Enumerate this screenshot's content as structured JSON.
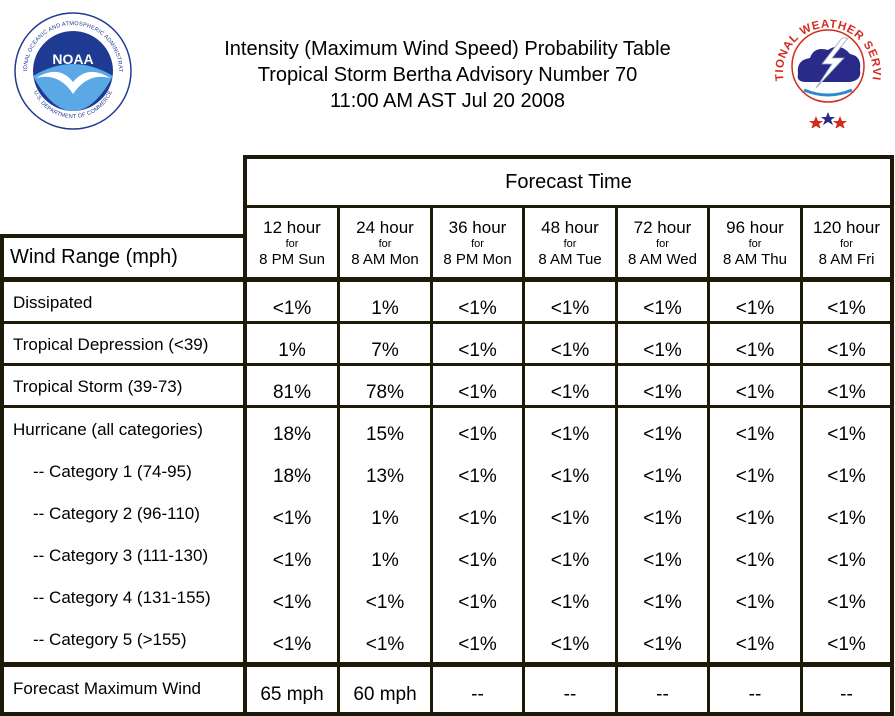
{
  "header": {
    "title_lines": [
      "Intensity (Maximum Wind Speed) Probability Table",
      "Tropical Storm Bertha Advisory Number 70",
      "11:00 AM AST Jul 20 2008"
    ],
    "left_logo": {
      "name": "NOAA",
      "ring_text": "NATIONAL OCEANIC AND ATMOSPHERIC ADMINISTRATION",
      "bottom_text": "U.S. DEPARTMENT OF COMMERCE",
      "icon": "noaa-logo",
      "color": "#1f3a93"
    },
    "right_logo": {
      "ring_text": "NATIONAL WEATHER SERVICE",
      "icon": "nws-logo",
      "color": "#d52b1e"
    }
  },
  "table": {
    "forecast_time_label": "Forecast Time",
    "row_header_label": "Wind Range (mph)",
    "columns": [
      {
        "hour": "12 hour",
        "for": "for",
        "time": "8 PM Sun"
      },
      {
        "hour": "24 hour",
        "for": "for",
        "time": "8 AM Mon"
      },
      {
        "hour": "36 hour",
        "for": "for",
        "time": "8 PM Mon"
      },
      {
        "hour": "48 hour",
        "for": "for",
        "time": "8 AM Tue"
      },
      {
        "hour": "72 hour",
        "for": "for",
        "time": "8 AM Wed"
      },
      {
        "hour": "96 hour",
        "for": "for",
        "time": "8 AM Thu"
      },
      {
        "hour": "120 hour",
        "for": "for",
        "time": "8 AM Fri"
      }
    ],
    "rows": [
      {
        "label": "Dissipated",
        "values": [
          "<1%",
          "1%",
          "<1%",
          "<1%",
          "<1%",
          "<1%",
          "<1%"
        ]
      },
      {
        "label": "Tropical Depression (<39)",
        "values": [
          "1%",
          "7%",
          "<1%",
          "<1%",
          "<1%",
          "<1%",
          "<1%"
        ]
      },
      {
        "label": "Tropical Storm (39-73)",
        "values": [
          "81%",
          "78%",
          "<1%",
          "<1%",
          "<1%",
          "<1%",
          "<1%"
        ]
      },
      {
        "label": "Hurricane (all categories)",
        "values": [
          "18%",
          "15%",
          "<1%",
          "<1%",
          "<1%",
          "<1%",
          "<1%"
        ]
      },
      {
        "label": "-- Category 1 (74-95)",
        "values": [
          "18%",
          "13%",
          "<1%",
          "<1%",
          "<1%",
          "<1%",
          "<1%"
        ]
      },
      {
        "label": "-- Category 2 (96-110)",
        "values": [
          "<1%",
          "1%",
          "<1%",
          "<1%",
          "<1%",
          "<1%",
          "<1%"
        ]
      },
      {
        "label": "-- Category 3 (111-130)",
        "values": [
          "<1%",
          "1%",
          "<1%",
          "<1%",
          "<1%",
          "<1%",
          "<1%"
        ]
      },
      {
        "label": "-- Category 4 (131-155)",
        "values": [
          "<1%",
          "<1%",
          "<1%",
          "<1%",
          "<1%",
          "<1%",
          "<1%"
        ]
      },
      {
        "label": "-- Category 5 (>155)",
        "values": [
          "<1%",
          "<1%",
          "<1%",
          "<1%",
          "<1%",
          "<1%",
          "<1%"
        ]
      },
      {
        "label": "Forecast Maximum Wind",
        "values": [
          "65 mph",
          "60 mph",
          "--",
          "--",
          "--",
          "--",
          "--"
        ]
      }
    ]
  }
}
